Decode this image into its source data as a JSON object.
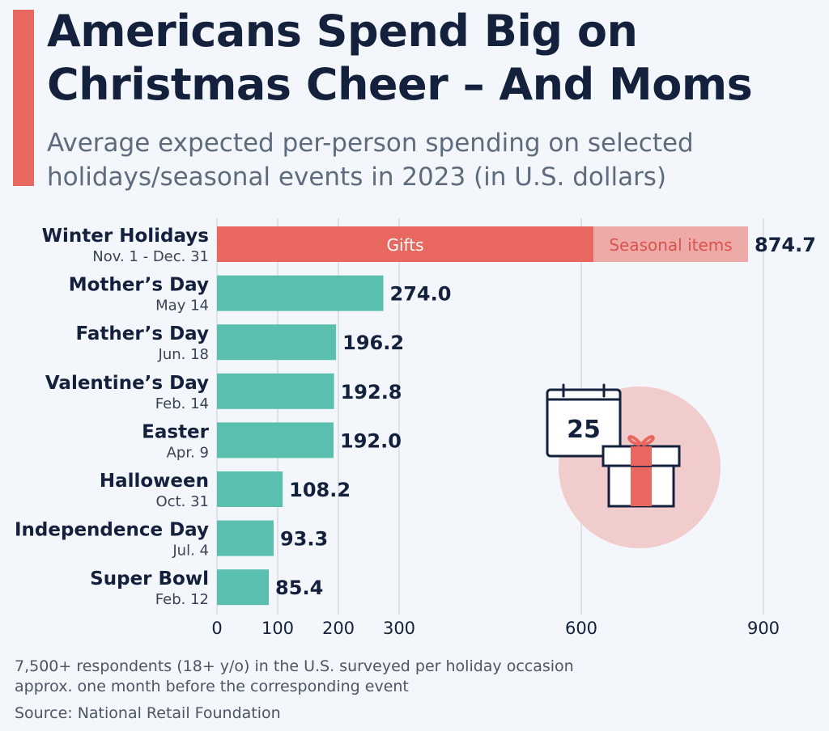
{
  "header": {
    "title": "Americans Spend Big on Christmas Cheer – And Moms",
    "subtitle": "Average expected per-person spending on selected holidays/seasonal events in 2023 (in U.S. dollars)"
  },
  "chart_data": {
    "type": "bar",
    "orientation": "horizontal",
    "categories": [
      "Winter Holidays",
      "Mother’s Day",
      "Father’s Day",
      "Valentine’s Day",
      "Easter",
      "Halloween",
      "Independence Day",
      "Super Bowl"
    ],
    "dates": [
      "Nov. 1 - Dec. 31",
      "May 14",
      "Jun. 18",
      "Feb. 14",
      "Apr. 9",
      "Oct. 31",
      "Jul. 4",
      "Feb. 12"
    ],
    "values": [
      874.7,
      274.0,
      196.2,
      192.8,
      192.0,
      108.2,
      93.3,
      85.4
    ],
    "value_labels": [
      "874.7",
      "274.0",
      "196.2",
      "192.8",
      "192.0",
      "108.2",
      "93.3",
      "85.4"
    ],
    "winter_breakdown": [
      {
        "name": "Gifts",
        "value": 620
      },
      {
        "name": "Seasonal items",
        "value": 254.7
      }
    ],
    "x_ticks": [
      0,
      100,
      200,
      300,
      600,
      900
    ],
    "xlim": [
      0,
      900
    ],
    "grid": true,
    "colors": {
      "bar": "#5bbfb0",
      "gifts": "#e8675f",
      "seasonal": "#eeaaa6",
      "text": "#14213d"
    }
  },
  "illustration": {
    "icon": "calendar-gift-icon",
    "calendar_day": "25",
    "circle_color": "#f1cccd"
  },
  "footer": {
    "note_line1": "7,500+ respondents (18+ y/o) in the U.S. surveyed per holiday occasion",
    "note_line2": "approx. one month before the corresponding event",
    "source": "Source: National Retail Foundation"
  }
}
